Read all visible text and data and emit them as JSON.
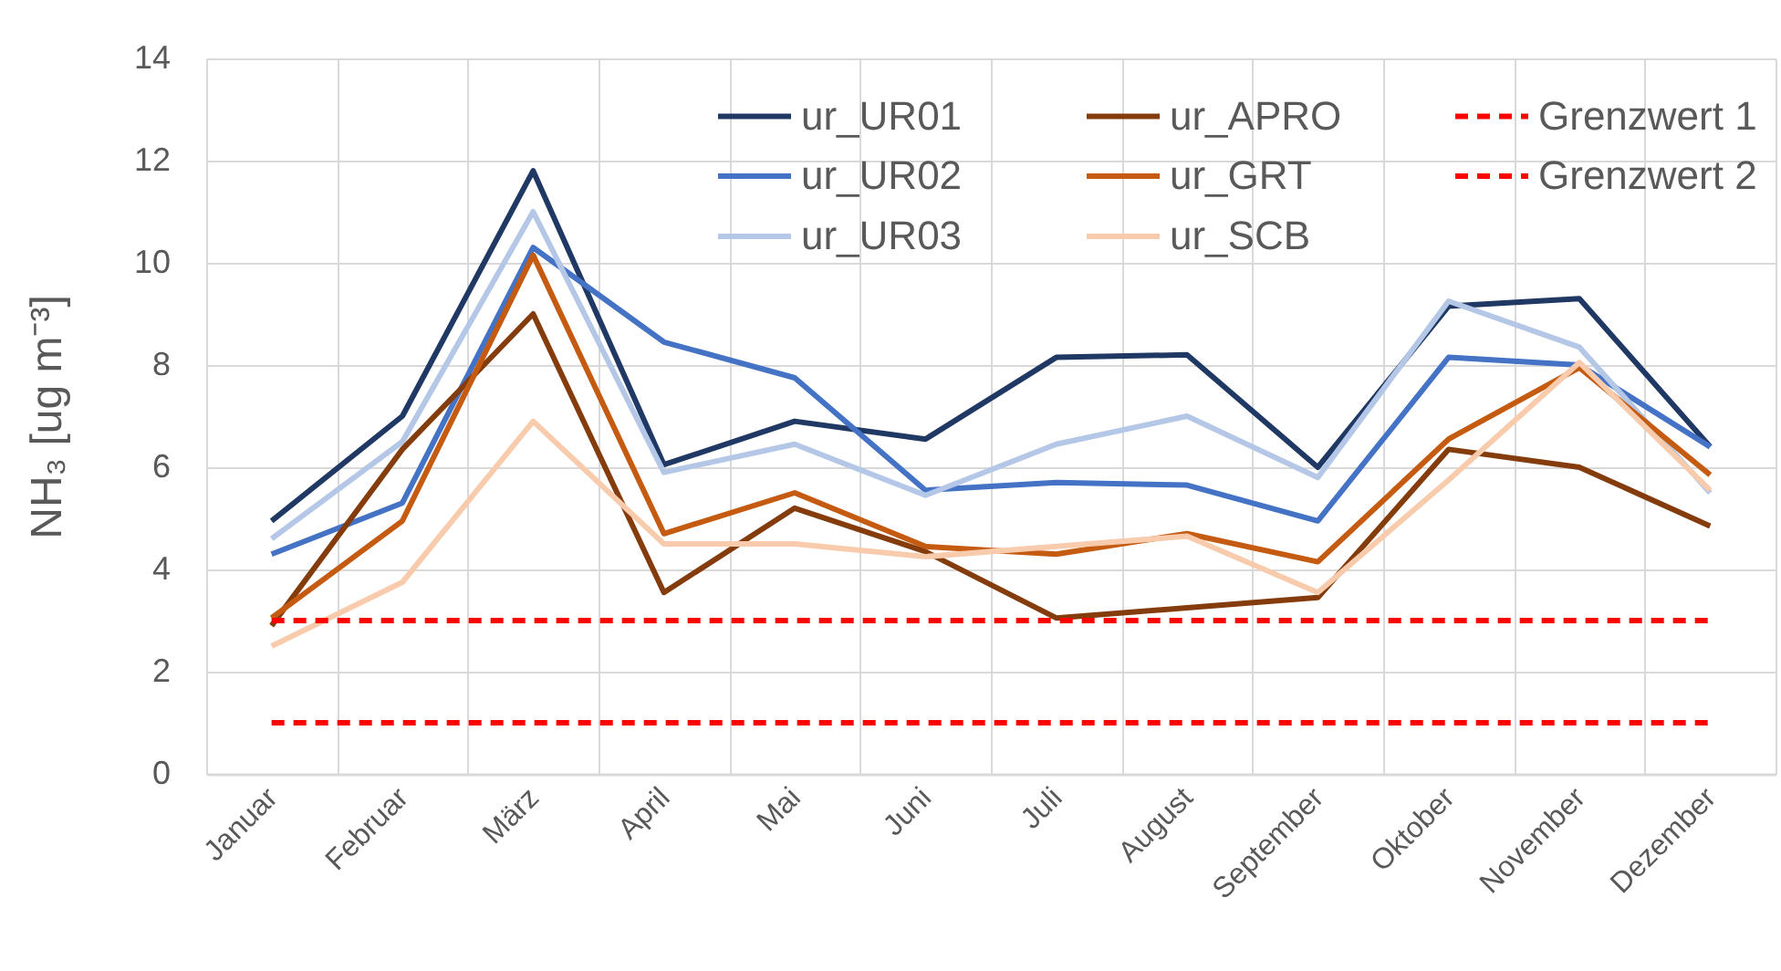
{
  "chart_data": {
    "type": "line",
    "ylabel": "NH₃ [ug m⁻³]",
    "categories": [
      "Januar",
      "Februar",
      "März",
      "April",
      "Mai",
      "Juni",
      "Juli",
      "August",
      "September",
      "Oktober",
      "November",
      "Dezember"
    ],
    "ylim": [
      0,
      14
    ],
    "yticks": [
      0,
      2,
      4,
      6,
      8,
      10,
      12,
      14
    ],
    "grid": true,
    "legend": "top right",
    "marker": "none",
    "line_style": "solid",
    "series": [
      {
        "name": "ur_UR01",
        "color": "#203864",
        "values": [
          4.95,
          7.0,
          11.8,
          6.05,
          6.9,
          6.55,
          8.15,
          8.2,
          6.0,
          9.15,
          9.3,
          6.4
        ]
      },
      {
        "name": "ur_UR02",
        "color": "#4472c4",
        "values": [
          4.3,
          5.3,
          10.3,
          8.45,
          7.75,
          5.55,
          5.7,
          5.65,
          4.95,
          8.15,
          8.0,
          6.4
        ]
      },
      {
        "name": "ur_UR03",
        "color": "#b4c7e7",
        "values": [
          4.6,
          6.5,
          11.0,
          5.9,
          6.45,
          5.45,
          6.45,
          7.0,
          5.8,
          9.25,
          8.35,
          5.5
        ]
      },
      {
        "name": "ur_APRO",
        "color": "#843c0c",
        "values": [
          2.9,
          6.35,
          9.0,
          3.55,
          5.2,
          4.35,
          3.05,
          3.25,
          3.45,
          6.35,
          6.0,
          4.85
        ]
      },
      {
        "name": "ur_GRT",
        "color": "#c55a11",
        "values": [
          3.05,
          4.95,
          10.15,
          4.7,
          5.5,
          4.45,
          4.3,
          4.7,
          4.15,
          6.55,
          7.95,
          5.85
        ]
      },
      {
        "name": "ur_SCB",
        "color": "#f8cbad",
        "values": [
          2.5,
          3.75,
          6.9,
          4.5,
          4.5,
          4.25,
          4.45,
          4.65,
          3.55,
          5.75,
          8.05,
          5.55
        ]
      },
      {
        "name": "Grenzwert 1",
        "color": "#ff0000",
        "line_style": "dashed",
        "values": [
          3,
          3,
          3,
          3,
          3,
          3,
          3,
          3,
          3,
          3,
          3,
          3
        ]
      },
      {
        "name": "Grenzwert 2",
        "color": "#ff0000",
        "line_style": "dashed",
        "values": [
          1,
          1,
          1,
          1,
          1,
          1,
          1,
          1,
          1,
          1,
          1,
          1
        ]
      }
    ]
  }
}
